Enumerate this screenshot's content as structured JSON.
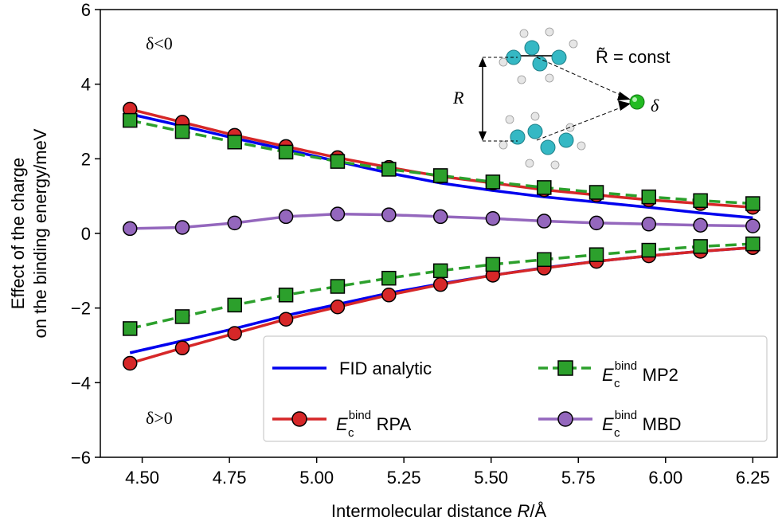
{
  "chart_data": {
    "type": "line",
    "xlabel_prefix": "Intermolecular distance ",
    "xlabel_var": "R",
    "xlabel_suffix": "/Å",
    "ylabel_line1": "Effect of the charge",
    "ylabel_line2": "on the binding energy/meV",
    "xlim": [
      4.38,
      6.32
    ],
    "ylim": [
      -6,
      6
    ],
    "xticks": [
      4.5,
      4.75,
      5.0,
      5.25,
      5.5,
      5.75,
      6.0,
      6.25
    ],
    "xtick_labels": [
      "4.50",
      "4.75",
      "5.00",
      "5.25",
      "5.50",
      "5.75",
      "6.00",
      "6.25"
    ],
    "yticks": [
      -6,
      -4,
      -2,
      0,
      2,
      4,
      6
    ],
    "ytick_labels": [
      "−6",
      "−4",
      "−2",
      "0",
      "2",
      "4",
      "6"
    ],
    "annotations": {
      "delta_neg": "δ<0",
      "delta_pos": "δ>0",
      "r_tilde": "R̃ = const",
      "r_label": "R",
      "delta": "δ"
    },
    "legend": {
      "fid": "FID analytic",
      "mp2_e": "E",
      "mp2_sup": "bind",
      "mp2_sub": "c",
      "mp2_name": " MP2",
      "rpa_e": "E",
      "rpa_sup": "bind",
      "rpa_sub": "c",
      "rpa_name": " RPA",
      "mbd_e": "E",
      "mbd_sup": "bind",
      "mbd_sub": "c",
      "mbd_name": " MBD"
    },
    "x": [
      4.465,
      4.615,
      4.765,
      4.912,
      5.06,
      5.207,
      5.355,
      5.505,
      5.652,
      5.802,
      5.952,
      6.1,
      6.25
    ],
    "series": [
      {
        "name": "FID analytic (δ<0)",
        "color": "#0000ee",
        "marker": "none",
        "style": "solid",
        "values": [
          3.2,
          2.88,
          2.55,
          2.25,
          1.93,
          1.62,
          1.35,
          1.15,
          0.98,
          0.84,
          0.7,
          0.55,
          0.42
        ]
      },
      {
        "name": "FID analytic (δ>0)",
        "color": "#0000ee",
        "marker": "none",
        "style": "solid",
        "values": [
          -3.2,
          -2.88,
          -2.55,
          -2.2,
          -1.9,
          -1.6,
          -1.35,
          -1.12,
          -0.92,
          -0.75,
          -0.6,
          -0.48,
          -0.38
        ]
      },
      {
        "name": "RPA (δ<0)",
        "color": "#d62728",
        "marker": "circle",
        "style": "solid",
        "values": [
          3.33,
          2.98,
          2.63,
          2.33,
          2.03,
          1.77,
          1.53,
          1.35,
          1.17,
          1.03,
          0.9,
          0.8,
          0.7
        ]
      },
      {
        "name": "RPA (δ>0)",
        "color": "#d62728",
        "marker": "circle",
        "style": "solid",
        "values": [
          -3.48,
          -3.07,
          -2.68,
          -2.3,
          -1.97,
          -1.65,
          -1.37,
          -1.12,
          -0.93,
          -0.75,
          -0.6,
          -0.48,
          -0.38
        ]
      },
      {
        "name": "MP2 (δ<0)",
        "color": "#2ca02c",
        "marker": "square",
        "style": "dashed",
        "values": [
          3.03,
          2.73,
          2.45,
          2.18,
          1.93,
          1.72,
          1.55,
          1.38,
          1.23,
          1.1,
          0.98,
          0.88,
          0.8
        ]
      },
      {
        "name": "MP2 (δ>0)",
        "color": "#2ca02c",
        "marker": "square",
        "style": "dashed",
        "values": [
          -2.55,
          -2.23,
          -1.92,
          -1.65,
          -1.42,
          -1.2,
          -1.0,
          -0.83,
          -0.7,
          -0.57,
          -0.45,
          -0.35,
          -0.28
        ]
      },
      {
        "name": "MBD",
        "color": "#9467bd",
        "marker": "circle",
        "style": "solid",
        "values": [
          0.13,
          0.16,
          0.28,
          0.45,
          0.52,
          0.5,
          0.45,
          0.4,
          0.33,
          0.28,
          0.25,
          0.22,
          0.2
        ]
      }
    ]
  }
}
